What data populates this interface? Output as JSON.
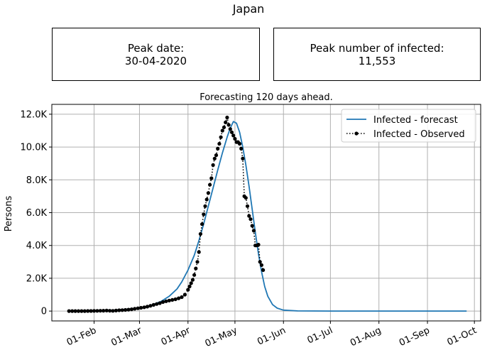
{
  "figure": {
    "title": "Japan"
  },
  "boxes": {
    "peak_date_label": "Peak date:",
    "peak_date_value": "30-04-2020",
    "peak_infected_label": "Peak number of infected:",
    "peak_infected_value": "11,553"
  },
  "colors": {
    "forecast": "#1f77b4",
    "observed": "#000000",
    "grid": "#b0b0b0"
  },
  "chart_data": {
    "type": "line",
    "title": "Forecasting 120 days ahead.",
    "ylabel": "Persons",
    "xlabel": "",
    "x_axis_type": "date",
    "x_range": [
      "2020-01-05",
      "2020-10-05"
    ],
    "ylim": [
      -600,
      12600
    ],
    "grid": true,
    "legend_position": "top-right",
    "x_ticks": [
      {
        "date": "2020-02-01",
        "label": "01-Feb"
      },
      {
        "date": "2020-03-01",
        "label": "01-Mar"
      },
      {
        "date": "2020-04-01",
        "label": "01-Apr"
      },
      {
        "date": "2020-05-01",
        "label": "01-May"
      },
      {
        "date": "2020-06-01",
        "label": "01-Jun"
      },
      {
        "date": "2020-07-01",
        "label": "01-Jul"
      },
      {
        "date": "2020-08-01",
        "label": "01-Aug"
      },
      {
        "date": "2020-09-01",
        "label": "01-Sep"
      },
      {
        "date": "2020-10-01",
        "label": "01-Oct"
      }
    ],
    "y_ticks": [
      {
        "value": 0,
        "label": "0"
      },
      {
        "value": 2000,
        "label": "2.0K"
      },
      {
        "value": 4000,
        "label": "4.0K"
      },
      {
        "value": 6000,
        "label": "6.0K"
      },
      {
        "value": 8000,
        "label": "8.0K"
      },
      {
        "value": 10000,
        "label": "10.0K"
      },
      {
        "value": 12000,
        "label": "12.0K"
      }
    ],
    "series": [
      {
        "name": "Infected - forecast",
        "style": "solid",
        "points": [
          [
            "2020-01-16",
            0
          ],
          [
            "2020-02-01",
            20
          ],
          [
            "2020-02-15",
            60
          ],
          [
            "2020-03-01",
            180
          ],
          [
            "2020-03-08",
            330
          ],
          [
            "2020-03-15",
            600
          ],
          [
            "2020-03-20",
            900
          ],
          [
            "2020-03-25",
            1350
          ],
          [
            "2020-03-28",
            1780
          ],
          [
            "2020-04-01",
            2500
          ],
          [
            "2020-04-05",
            3400
          ],
          [
            "2020-04-08",
            4300
          ],
          [
            "2020-04-11",
            5300
          ],
          [
            "2020-04-14",
            6400
          ],
          [
            "2020-04-17",
            7500
          ],
          [
            "2020-04-20",
            8600
          ],
          [
            "2020-04-23",
            9650
          ],
          [
            "2020-04-26",
            10600
          ],
          [
            "2020-04-28",
            11150
          ],
          [
            "2020-04-30",
            11553
          ],
          [
            "2020-05-02",
            11450
          ],
          [
            "2020-05-04",
            10900
          ],
          [
            "2020-05-06",
            10000
          ],
          [
            "2020-05-08",
            8900
          ],
          [
            "2020-05-10",
            7600
          ],
          [
            "2020-05-12",
            6200
          ],
          [
            "2020-05-14",
            4800
          ],
          [
            "2020-05-16",
            3500
          ],
          [
            "2020-05-18",
            2400
          ],
          [
            "2020-05-20",
            1500
          ],
          [
            "2020-05-22",
            900
          ],
          [
            "2020-05-25",
            400
          ],
          [
            "2020-05-28",
            180
          ],
          [
            "2020-06-01",
            60
          ],
          [
            "2020-06-10",
            10
          ],
          [
            "2020-07-01",
            0
          ],
          [
            "2020-09-26",
            0
          ]
        ]
      },
      {
        "name": "Infected - Observed",
        "style": "dotted-markers",
        "points": [
          [
            "2020-01-16",
            0
          ],
          [
            "2020-01-18",
            0
          ],
          [
            "2020-01-20",
            0
          ],
          [
            "2020-01-22",
            0
          ],
          [
            "2020-01-24",
            0
          ],
          [
            "2020-01-26",
            0
          ],
          [
            "2020-01-28",
            5
          ],
          [
            "2020-01-30",
            8
          ],
          [
            "2020-02-01",
            10
          ],
          [
            "2020-02-03",
            15
          ],
          [
            "2020-02-05",
            20
          ],
          [
            "2020-02-07",
            25
          ],
          [
            "2020-02-09",
            30
          ],
          [
            "2020-02-11",
            20
          ],
          [
            "2020-02-13",
            15
          ],
          [
            "2020-02-15",
            30
          ],
          [
            "2020-02-17",
            50
          ],
          [
            "2020-02-19",
            60
          ],
          [
            "2020-02-21",
            70
          ],
          [
            "2020-02-23",
            90
          ],
          [
            "2020-02-25",
            110
          ],
          [
            "2020-02-27",
            140
          ],
          [
            "2020-02-29",
            170
          ],
          [
            "2020-03-02",
            200
          ],
          [
            "2020-03-04",
            230
          ],
          [
            "2020-03-06",
            270
          ],
          [
            "2020-03-08",
            320
          ],
          [
            "2020-03-10",
            380
          ],
          [
            "2020-03-12",
            430
          ],
          [
            "2020-03-14",
            480
          ],
          [
            "2020-03-16",
            550
          ],
          [
            "2020-03-18",
            600
          ],
          [
            "2020-03-20",
            640
          ],
          [
            "2020-03-22",
            680
          ],
          [
            "2020-03-24",
            720
          ],
          [
            "2020-03-26",
            780
          ],
          [
            "2020-03-28",
            850
          ],
          [
            "2020-03-30",
            1000
          ],
          [
            "2020-04-01",
            1300
          ],
          [
            "2020-04-02",
            1500
          ],
          [
            "2020-04-03",
            1700
          ],
          [
            "2020-04-04",
            1900
          ],
          [
            "2020-04-05",
            2200
          ],
          [
            "2020-04-06",
            2600
          ],
          [
            "2020-04-07",
            3000
          ],
          [
            "2020-04-08",
            3600
          ],
          [
            "2020-04-09",
            4700
          ],
          [
            "2020-04-10",
            5300
          ],
          [
            "2020-04-11",
            5900
          ],
          [
            "2020-04-12",
            6400
          ],
          [
            "2020-04-13",
            6800
          ],
          [
            "2020-04-14",
            7200
          ],
          [
            "2020-04-15",
            7700
          ],
          [
            "2020-04-16",
            8100
          ],
          [
            "2020-04-17",
            8900
          ],
          [
            "2020-04-18",
            9300
          ],
          [
            "2020-04-19",
            9500
          ],
          [
            "2020-04-20",
            9900
          ],
          [
            "2020-04-21",
            10200
          ],
          [
            "2020-04-22",
            10600
          ],
          [
            "2020-04-23",
            11000
          ],
          [
            "2020-04-24",
            11200
          ],
          [
            "2020-04-25",
            11500
          ],
          [
            "2020-04-26",
            11800
          ],
          [
            "2020-04-27",
            11350
          ],
          [
            "2020-04-28",
            11100
          ],
          [
            "2020-04-29",
            10900
          ],
          [
            "2020-04-30",
            10700
          ],
          [
            "2020-05-01",
            10500
          ],
          [
            "2020-05-02",
            10300
          ],
          [
            "2020-05-03",
            10300
          ],
          [
            "2020-05-04",
            10200
          ],
          [
            "2020-05-05",
            9900
          ],
          [
            "2020-05-06",
            9300
          ],
          [
            "2020-05-07",
            7000
          ],
          [
            "2020-05-08",
            6900
          ],
          [
            "2020-05-09",
            6400
          ],
          [
            "2020-05-10",
            5800
          ],
          [
            "2020-05-11",
            5600
          ],
          [
            "2020-05-12",
            5200
          ],
          [
            "2020-05-13",
            4900
          ],
          [
            "2020-05-14",
            4000
          ],
          [
            "2020-05-15",
            4000
          ],
          [
            "2020-05-16",
            4050
          ],
          [
            "2020-05-17",
            3000
          ],
          [
            "2020-05-18",
            2800
          ],
          [
            "2020-05-19",
            2500
          ]
        ]
      }
    ]
  }
}
